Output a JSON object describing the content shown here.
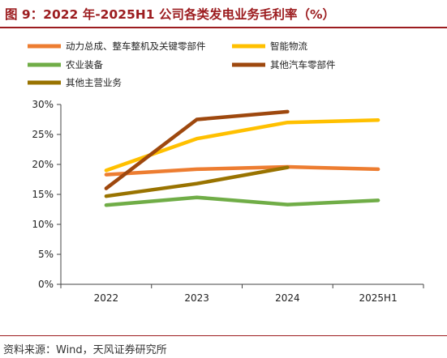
{
  "title": "图 9：2022 年-2025H1 公司各类发电业务毛利率（%）",
  "source": "资料来源：Wind，天风证券研究所",
  "chart_data": {
    "type": "line",
    "categories": [
      "2022",
      "2023",
      "2024",
      "2025H1"
    ],
    "y_ticks": [
      "0%",
      "5%",
      "10%",
      "15%",
      "20%",
      "25%",
      "30%"
    ],
    "ylim": [
      0,
      30
    ],
    "grid": false,
    "legend_position": "top",
    "series": [
      {
        "name": "动力总成、整车整机及关键零部件",
        "color": "#ed7d31",
        "values": [
          18.3,
          19.2,
          19.6,
          19.2
        ]
      },
      {
        "name": "智能物流",
        "color": "#ffc000",
        "values": [
          19.0,
          24.3,
          27.0,
          27.4
        ]
      },
      {
        "name": "农业装备",
        "color": "#70ad47",
        "values": [
          13.2,
          14.5,
          13.3,
          14.0
        ]
      },
      {
        "name": "其他汽车零部件",
        "color": "#9e480e",
        "values": [
          16.0,
          27.5,
          28.8,
          null
        ]
      },
      {
        "name": "其他主营业务",
        "color": "#997300",
        "values": [
          14.7,
          16.8,
          19.5,
          null
        ]
      }
    ]
  }
}
